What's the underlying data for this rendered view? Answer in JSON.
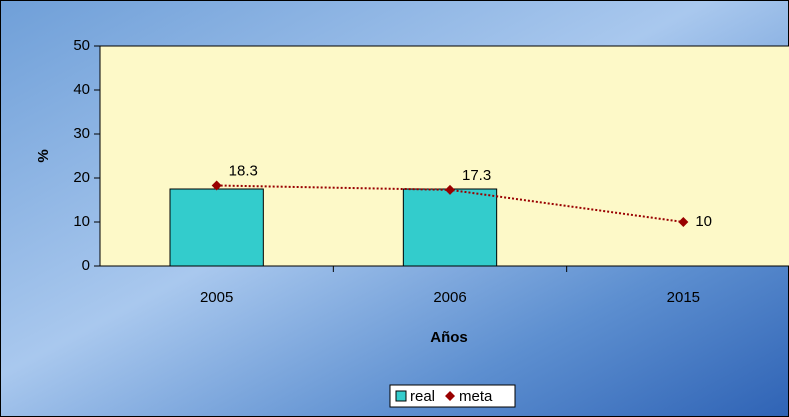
{
  "chart_data": {
    "type": "bar",
    "x_label": "Años",
    "y_label": "%",
    "categories": [
      "2005",
      "2006",
      "2015"
    ],
    "series": [
      {
        "name": "real",
        "type": "bar",
        "color": "#33cccc",
        "values": [
          17.5,
          17.5,
          null
        ]
      },
      {
        "name": "meta",
        "type": "line",
        "color": "#990000",
        "values": [
          18.3,
          17.3,
          10
        ]
      }
    ],
    "ylim": [
      0,
      50
    ],
    "yticks": [
      0,
      10,
      20,
      30,
      40,
      50
    ],
    "data_labels": true,
    "legend": "bottom"
  }
}
